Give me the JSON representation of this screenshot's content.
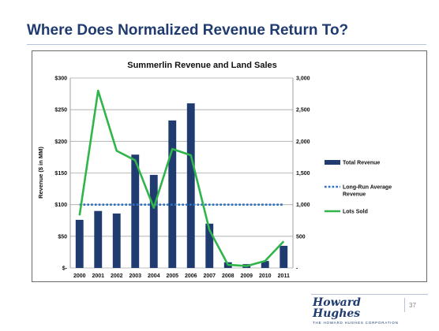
{
  "slide": {
    "title": "Where Does Normalized Revenue Return To?",
    "page_number": "37",
    "logo_text": "Howard Hughes",
    "logo_subtext": "THE HOWARD HUGHES CORPORATION"
  },
  "chart_data": {
    "type": "bar",
    "title": "Summerlin Revenue and Land Sales",
    "ylabel": "Revenue ($ in MM)",
    "xlabel": "",
    "categories": [
      "2000",
      "2001",
      "2002",
      "2003",
      "2004",
      "2005",
      "2006",
      "2007",
      "2008",
      "2009",
      "2010",
      "2011"
    ],
    "ylim": [
      0,
      300
    ],
    "y_ticks": [
      0,
      50,
      100,
      150,
      200,
      250,
      300
    ],
    "y_tick_labels": [
      "$-",
      "$50",
      "$100",
      "$150",
      "$200",
      "$250",
      "$300"
    ],
    "y2lim": [
      0,
      3000
    ],
    "y2_ticks": [
      0,
      500,
      1000,
      1500,
      2000,
      2500,
      3000
    ],
    "y2_tick_labels": [
      "-",
      "500",
      "1,000",
      "1,500",
      "2,000",
      "2,500",
      "3,000"
    ],
    "grid": true,
    "legend_position": "right",
    "series": [
      {
        "name": "Total Revenue",
        "type": "bar",
        "axis": "left",
        "color": "#1f3b70",
        "values": [
          76,
          90,
          86,
          179,
          147,
          233,
          260,
          70,
          9,
          6,
          11,
          35
        ]
      },
      {
        "name": "Long-Run Average Revenue",
        "type": "line",
        "style": "dotted",
        "axis": "left",
        "color": "#2d6fc1",
        "values": [
          100,
          100,
          100,
          100,
          100,
          100,
          100,
          100,
          100,
          100,
          100,
          100
        ]
      },
      {
        "name": "Lots Sold",
        "type": "line",
        "axis": "right",
        "color": "#2fb54a",
        "values": [
          830,
          2800,
          1850,
          1700,
          950,
          1880,
          1780,
          600,
          50,
          30,
          110,
          420
        ]
      }
    ]
  }
}
